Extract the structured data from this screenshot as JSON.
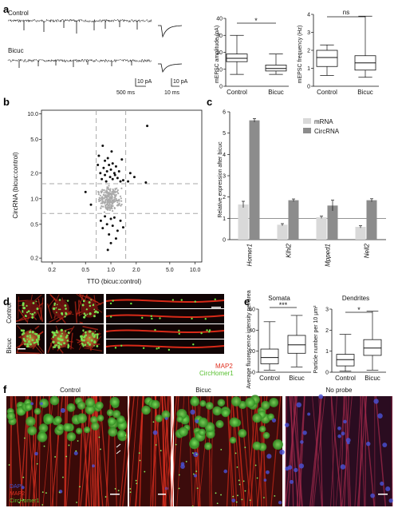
{
  "panels": {
    "a": {
      "label": "a",
      "traces": [
        {
          "label": "Control"
        },
        {
          "label": "Bicuc"
        }
      ],
      "scalebar_trace": {
        "y": "10 pA",
        "x": "500 ms"
      },
      "scalebar_inset": {
        "y": "10 pA",
        "x": "10 ms"
      },
      "amplitude_plot": {
        "ylabel": "mEPSC amplitude (pA)",
        "yticks": [
          "0",
          "10",
          "20",
          "30",
          "40"
        ],
        "categories": [
          "Control",
          "Bicuc"
        ],
        "significance": "*"
      },
      "frequency_plot": {
        "ylabel": "mEPSC frequency (Hz)",
        "yticks": [
          "0",
          "1",
          "2",
          "3",
          "4"
        ],
        "categories": [
          "Control",
          "Bicuc"
        ],
        "significance": "ns"
      }
    },
    "b": {
      "label": "b",
      "xlabel": "TTO (bicuc:control)",
      "ylabel": "CircRNA (bicuc:control)",
      "xticks": [
        "0.2",
        "0.5",
        "1.0",
        "2.0",
        "5.0",
        "10.0"
      ],
      "yticks": [
        "0.2",
        "0.5",
        "1.0",
        "2.0",
        "5.0",
        "10.0"
      ]
    },
    "c": {
      "label": "c",
      "ylabel": "Relative expression after bicuc",
      "yticks": [
        "0",
        "1",
        "2",
        "3",
        "4",
        "5",
        "6"
      ],
      "legend": [
        "mRNA",
        "CircRNA"
      ],
      "categories": [
        "Homer1",
        "Klhl2",
        "Mpped1",
        "Nell2"
      ]
    },
    "d": {
      "label": "d",
      "rows": [
        "Control",
        "Bicuc"
      ],
      "stain1": "MAP2",
      "stain2": "CircHomer1"
    },
    "e": {
      "label": "e",
      "somata": {
        "title": "Somata",
        "ylabel": "Average fluorescence intensity per area",
        "yticks": [
          "0",
          "20",
          "40",
          "60"
        ],
        "categories": [
          "Control",
          "Bicuc"
        ],
        "significance": "***"
      },
      "dendrites": {
        "title": "Dendrites",
        "ylabel": "Particle number per 10 μm²",
        "yticks": [
          "0",
          "1",
          "2",
          "3"
        ],
        "categories": [
          "Control",
          "Bicuc"
        ],
        "significance": "*"
      }
    },
    "f": {
      "label": "f",
      "titles": [
        "Control",
        "Bicuc",
        "No probe"
      ],
      "legend": [
        "DAPI",
        "MAP2",
        "CircHomer1"
      ]
    }
  },
  "colors": {
    "mrna_bar": "#d9d9d9",
    "circ_bar": "#8c8c8c",
    "scatter_sig": "#111111",
    "scatter_ns": "#aaaaaa",
    "map2": "#e03020",
    "circ": "#58c030",
    "dapi": "#4050d0"
  },
  "chart_data": [
    {
      "type": "box",
      "panel": "a-amplitude",
      "ylabel": "mEPSC amplitude (pA)",
      "ylim": [
        0,
        40
      ],
      "categories": [
        "Control",
        "Bicuc"
      ],
      "boxes": [
        {
          "min": 7,
          "q1": 14.5,
          "median": 16.5,
          "q3": 19,
          "max": 30
        },
        {
          "min": 7,
          "q1": 9,
          "median": 10.5,
          "q3": 12.5,
          "max": 19
        }
      ]
    },
    {
      "type": "box",
      "panel": "a-frequency",
      "ylabel": "mEPSC frequency (Hz)",
      "ylim": [
        0,
        4
      ],
      "categories": [
        "Control",
        "Bicuc"
      ],
      "boxes": [
        {
          "min": 0.6,
          "q1": 1.1,
          "median": 1.6,
          "q3": 2.0,
          "max": 2.3
        },
        {
          "min": 0.5,
          "q1": 0.9,
          "median": 1.3,
          "q3": 1.7,
          "max": 3.9
        }
      ]
    },
    {
      "type": "bar",
      "panel": "c",
      "ylabel": "Relative expression after bicuc",
      "ylim": [
        0,
        6
      ],
      "categories": [
        "Homer1",
        "Klhl2",
        "Mpped1",
        "Nell2"
      ],
      "series": [
        {
          "name": "mRNA",
          "values": [
            1.65,
            0.7,
            1.05,
            0.6
          ]
        },
        {
          "name": "CircRNA",
          "values": [
            5.6,
            1.85,
            1.6,
            1.85
          ]
        }
      ],
      "errors": [
        [
          0.15,
          0.05,
          0.05,
          0.05
        ],
        [
          0.08,
          0.06,
          0.25,
          0.07
        ]
      ]
    },
    {
      "type": "box",
      "panel": "e-somata",
      "ylabel": "Average fluorescence intensity per area",
      "ylim": [
        0,
        60
      ],
      "categories": [
        "Control",
        "Bicuc"
      ],
      "boxes": [
        {
          "min": 2,
          "q1": 8,
          "median": 14,
          "q3": 22,
          "max": 48
        },
        {
          "min": 5,
          "q1": 18,
          "median": 26,
          "q3": 35,
          "max": 54
        }
      ]
    },
    {
      "type": "box",
      "panel": "e-dendrites",
      "ylabel": "Particle number per 10 μm²",
      "ylim": [
        0,
        3
      ],
      "categories": [
        "Control",
        "Bicuc"
      ],
      "boxes": [
        {
          "min": 0.05,
          "q1": 0.3,
          "median": 0.6,
          "q3": 0.85,
          "max": 1.8
        },
        {
          "min": 0.1,
          "q1": 0.8,
          "median": 1.15,
          "q3": 1.55,
          "max": 2.9
        }
      ]
    },
    {
      "type": "scatter",
      "panel": "b",
      "xlabel": "TTO (bicuc:control)",
      "ylabel": "CircRNA (bicuc:control)",
      "xscale": "log",
      "yscale": "log",
      "xlim": [
        0.15,
        12
      ],
      "ylim": [
        0.18,
        11
      ],
      "thresholds": {
        "x": [
          0.67,
          1.5
        ],
        "y": [
          0.67,
          1.5
        ]
      },
      "points_sig": [
        [
          0.7,
          2.5
        ],
        [
          0.72,
          3.2
        ],
        [
          0.75,
          2.0
        ],
        [
          0.78,
          1.7
        ],
        [
          0.8,
          4.2
        ],
        [
          0.82,
          2.3
        ],
        [
          0.85,
          1.9
        ],
        [
          0.85,
          2.8
        ],
        [
          0.88,
          1.6
        ],
        [
          0.9,
          2.1
        ],
        [
          0.92,
          3.0
        ],
        [
          0.95,
          2.5
        ],
        [
          0.98,
          1.8
        ],
        [
          1.0,
          2.2
        ],
        [
          1.02,
          3.6
        ],
        [
          1.05,
          1.7
        ],
        [
          1.05,
          2.6
        ],
        [
          1.1,
          2.0
        ],
        [
          1.12,
          1.9
        ],
        [
          1.15,
          2.4
        ],
        [
          1.2,
          1.75
        ],
        [
          1.25,
          2.1
        ],
        [
          1.3,
          1.6
        ],
        [
          1.35,
          2.9
        ],
        [
          1.4,
          1.65
        ],
        [
          0.76,
          0.55
        ],
        [
          0.8,
          0.45
        ],
        [
          0.85,
          0.62
        ],
        [
          0.9,
          0.5
        ],
        [
          0.95,
          0.38
        ],
        [
          1.0,
          0.58
        ],
        [
          1.05,
          0.48
        ],
        [
          1.1,
          0.6
        ],
        [
          1.2,
          0.42
        ],
        [
          1.3,
          0.55
        ],
        [
          1.4,
          0.46
        ],
        [
          1.0,
          0.3
        ],
        [
          0.92,
          0.25
        ],
        [
          1.15,
          0.34
        ],
        [
          0.5,
          1.2
        ],
        [
          0.58,
          0.85
        ],
        [
          1.7,
          2.0
        ],
        [
          1.9,
          1.8
        ],
        [
          2.6,
          1.55
        ],
        [
          2.7,
          7.2
        ],
        [
          1.6,
          1.6
        ]
      ],
      "points_ns_count": 220
    }
  ]
}
